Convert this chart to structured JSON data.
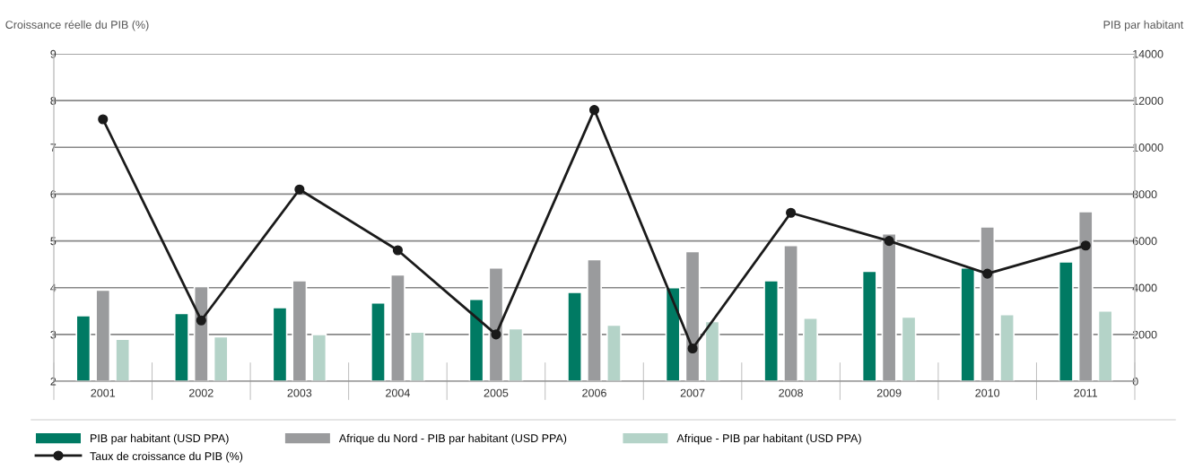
{
  "chart_data": {
    "type": "bar",
    "ylabel": "Croissance réelle du PIB (%)",
    "y2label": "PIB par habitant",
    "categories": [
      "2001",
      "2002",
      "2003",
      "2004",
      "2005",
      "2006",
      "2007",
      "2008",
      "2009",
      "2010",
      "2011"
    ],
    "series": [
      {
        "name": "PIB par habitant (USD PPA)",
        "color": "#007a63",
        "axis": "y2",
        "values": [
          2800,
          2900,
          3150,
          3350,
          3500,
          3800,
          4000,
          4300,
          4700,
          4850,
          5100
        ]
      },
      {
        "name": "Afrique du Nord - PIB par habitant (USD PPA)",
        "color": "#9a9b9d",
        "axis": "y2",
        "values": [
          3900,
          4050,
          4300,
          4550,
          4850,
          5200,
          5550,
          5800,
          6300,
          6600,
          7250
        ]
      },
      {
        "name": "Afrique - PIB par habitant (USD PPA)",
        "color": "#b4d3c8",
        "axis": "y2",
        "values": [
          1800,
          1900,
          2000,
          2100,
          2250,
          2400,
          2550,
          2700,
          2750,
          2850,
          3000
        ]
      },
      {
        "name": "Taux de croissance du PIB (%)",
        "type": "line",
        "color": "#1a1a1a",
        "axis": "y",
        "marker": "circle",
        "values": [
          7.6,
          3.3,
          6.1,
          4.8,
          3.0,
          7.8,
          2.7,
          5.6,
          5.0,
          4.3,
          4.9
        ]
      }
    ],
    "ylim": [
      2,
      9
    ],
    "yticks": [
      2,
      3,
      4,
      5,
      6,
      7,
      8,
      9
    ],
    "y2lim": [
      0,
      14000
    ],
    "y2ticks": [
      0,
      2000,
      4000,
      6000,
      8000,
      10000,
      12000,
      14000
    ],
    "grid": "y",
    "legend": "bottom"
  }
}
